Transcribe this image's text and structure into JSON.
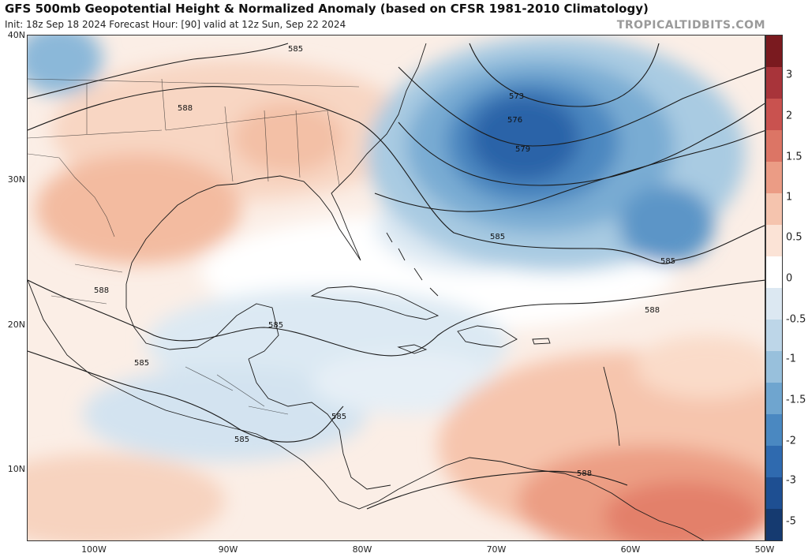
{
  "header": {
    "title": "GFS 500mb Geopotential Height & Normalized Anomaly (based on CFSR 1981-2010 Climatology)",
    "subtitle": "Init: 18z Sep 18 2024   Forecast Hour: [90]   valid at 12z Sun, Sep 22 2024",
    "watermark": "TROPICALTIDBITS.COM"
  },
  "axes": {
    "lat_labels": [
      "40N",
      "30N",
      "20N",
      "10N"
    ],
    "lon_labels": [
      "100W",
      "90W",
      "80W",
      "70W",
      "60W",
      "50W"
    ]
  },
  "contour_labels": {
    "c573": "573",
    "c576": "576",
    "c579": "579",
    "c585_ne": "585",
    "c585_atl": "585",
    "c585_east": "585",
    "c585_gulf": "585",
    "c585_yuc": "585",
    "c585_cam": "585",
    "c585_hon": "585",
    "c585_top": "585",
    "c588_tx": "588",
    "c588_mx": "588",
    "c588_atl": "588",
    "c588_sa": "588"
  },
  "colorbar": {
    "tick_labels": [
      "3",
      "2",
      "1.5",
      "1",
      "0.5",
      "0",
      "-0.5",
      "-1",
      "-1.5",
      "-2",
      "-3",
      "-5"
    ],
    "colors": [
      "#7a1a1f",
      "#a8343a",
      "#c9524f",
      "#dc7565",
      "#eb9c85",
      "#f5c4ae",
      "#fbe3d6",
      "#ffffff",
      "#dce8f2",
      "#bdd6e8",
      "#98c0dc",
      "#6fa5cf",
      "#4a88c1",
      "#2f6aaf",
      "#1e4f92",
      "#153a70"
    ]
  }
}
